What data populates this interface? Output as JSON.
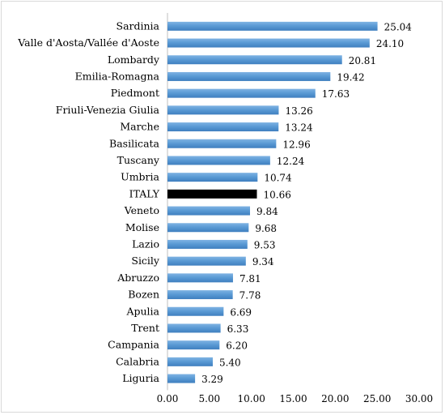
{
  "chart_data": {
    "type": "bar",
    "orientation": "horizontal",
    "categories": [
      "Sardinia",
      "Valle d'Aosta/Vallée d'Aoste",
      "Lombardy",
      "Emilia-Romagna",
      "Piedmont",
      "Friuli-Venezia Giulia",
      "Marche",
      "Basilicata",
      "Tuscany",
      "Umbria",
      "ITALY",
      "Veneto",
      "Molise",
      "Lazio",
      "Sicily",
      "Abruzzo",
      "Bozen",
      "Apulia",
      "Trent",
      "Campania",
      "Calabria",
      "Liguria"
    ],
    "values": [
      25.04,
      24.1,
      20.81,
      19.42,
      17.63,
      13.26,
      13.24,
      12.96,
      12.24,
      10.74,
      10.66,
      9.84,
      9.68,
      9.53,
      9.34,
      7.81,
      7.78,
      6.69,
      6.33,
      6.2,
      5.4,
      3.29
    ],
    "value_labels": [
      "25.04",
      "24.10",
      "20.81",
      "19.42",
      "17.63",
      "13.26",
      "13.24",
      "12.96",
      "12.24",
      "10.74",
      "10.66",
      "9.84",
      "9.68",
      "9.53",
      "9.34",
      "7.81",
      "7.78",
      "6.69",
      "6.33",
      "6.20",
      "5.40",
      "3.29"
    ],
    "highlight_category": "ITALY",
    "xlim": [
      0,
      30
    ],
    "x_ticks": [
      "0.00",
      "5.00",
      "10.00",
      "15.00",
      "20.00",
      "25.00",
      "30.00"
    ],
    "title": "",
    "xlabel": "",
    "ylabel": "",
    "grid": false,
    "legend": "none",
    "colors": {
      "bar": "#5b9bd5",
      "bar_dark": "#3a78b8",
      "highlight": "#000000",
      "axis": "#bfbfbf"
    }
  }
}
